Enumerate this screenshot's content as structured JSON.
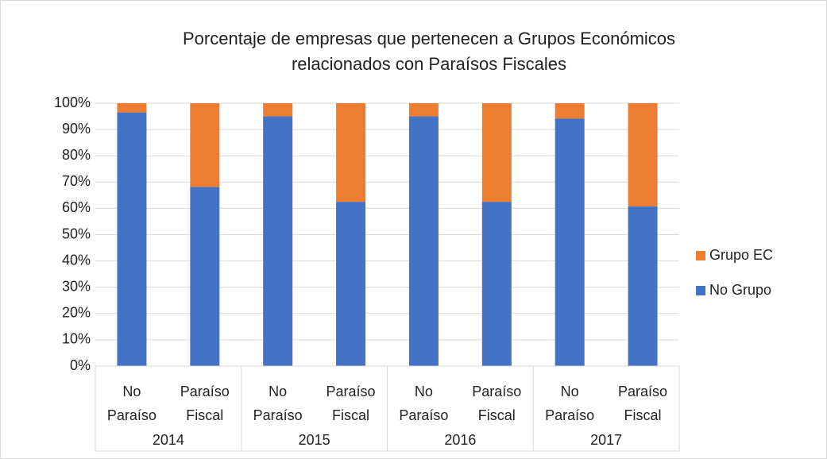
{
  "chart_data": {
    "type": "stacked_bar",
    "title": [
      "Porcentaje de empresas que pertenecen a Grupos Económicos",
      "relacionados con Paraísos Fiscales"
    ],
    "categories": [
      "No Paraíso",
      "Paraíso Fiscal",
      "No Paraíso",
      "Paraíso Fiscal",
      "No Paraíso",
      "Paraíso Fiscal",
      "No Paraíso",
      "Paraíso Fiscal"
    ],
    "groups": [
      "2014",
      "2015",
      "2016",
      "2017"
    ],
    "series": [
      {
        "name": "No Grupo",
        "color": "#4472c4",
        "values": [
          96.5,
          68.2,
          95,
          62.5,
          95,
          62.5,
          94.2,
          60.8
        ]
      },
      {
        "name": "Grupo EC",
        "color": "#ed7d31",
        "values": [
          3.5,
          31.8,
          5,
          37.5,
          5,
          37.5,
          5.8,
          39.2
        ]
      }
    ],
    "ylim": [
      0,
      100
    ],
    "yticks": [
      {
        "value": 0,
        "label": "0%"
      },
      {
        "value": 10,
        "label": "10%"
      },
      {
        "value": 20,
        "label": "20%"
      },
      {
        "value": 30,
        "label": "30%"
      },
      {
        "value": 40,
        "label": "40%"
      },
      {
        "value": 50,
        "label": "50%"
      },
      {
        "value": 60,
        "label": "60%"
      },
      {
        "value": 70,
        "label": "70%"
      },
      {
        "value": 80,
        "label": "80%"
      },
      {
        "value": 90,
        "label": "90%"
      },
      {
        "value": 100,
        "label": "100%"
      }
    ],
    "grid": true,
    "legend": "right"
  }
}
